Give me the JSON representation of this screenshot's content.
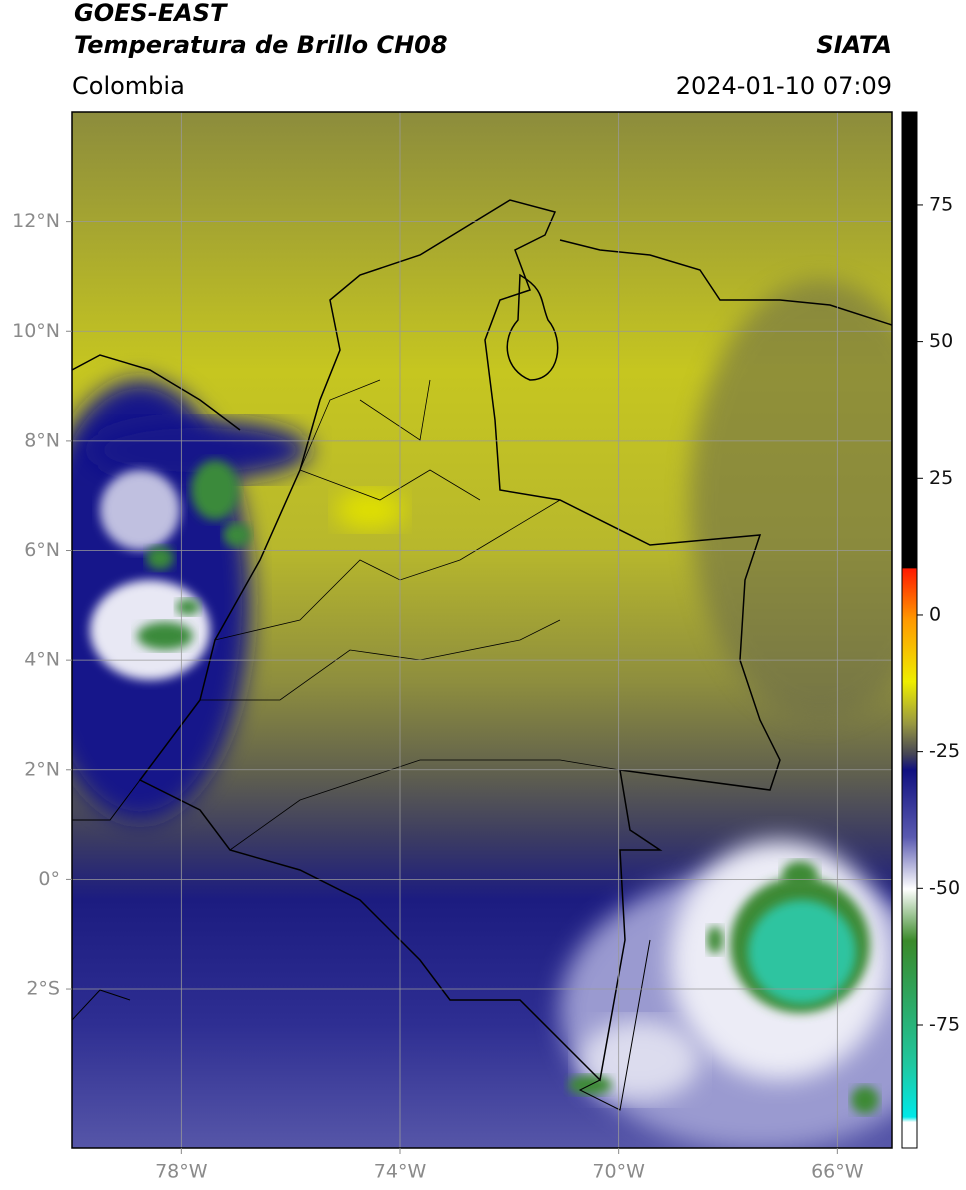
{
  "header": {
    "title": "GOES-EAST",
    "subtitle": "Temperatura de Brillo CH08",
    "source": "SIATA",
    "region": "Colombia",
    "datetime": "2024-01-10 07:09"
  },
  "map": {
    "lon_lim": [
      -80,
      -65
    ],
    "lat_lim": [
      -4.9,
      14
    ],
    "grid": true,
    "lon_ticks": [
      {
        "value": -78,
        "label": "78°W"
      },
      {
        "value": -74,
        "label": "74°W"
      },
      {
        "value": -70,
        "label": "70°W"
      },
      {
        "value": -66,
        "label": "66°W"
      }
    ],
    "lat_ticks": [
      {
        "value": 12,
        "label": "12°N"
      },
      {
        "value": 10,
        "label": "10°N"
      },
      {
        "value": 8,
        "label": "8°N"
      },
      {
        "value": 6,
        "label": "6°N"
      },
      {
        "value": 4,
        "label": "4°N"
      },
      {
        "value": 2,
        "label": "2°N"
      },
      {
        "value": 0,
        "label": "0°"
      },
      {
        "value": -2,
        "label": "2°S"
      }
    ]
  },
  "colorbar": {
    "lim": [
      -97.5,
      92
    ],
    "ticks": [
      75,
      50,
      25,
      0,
      -25,
      -50,
      -75
    ]
  }
}
